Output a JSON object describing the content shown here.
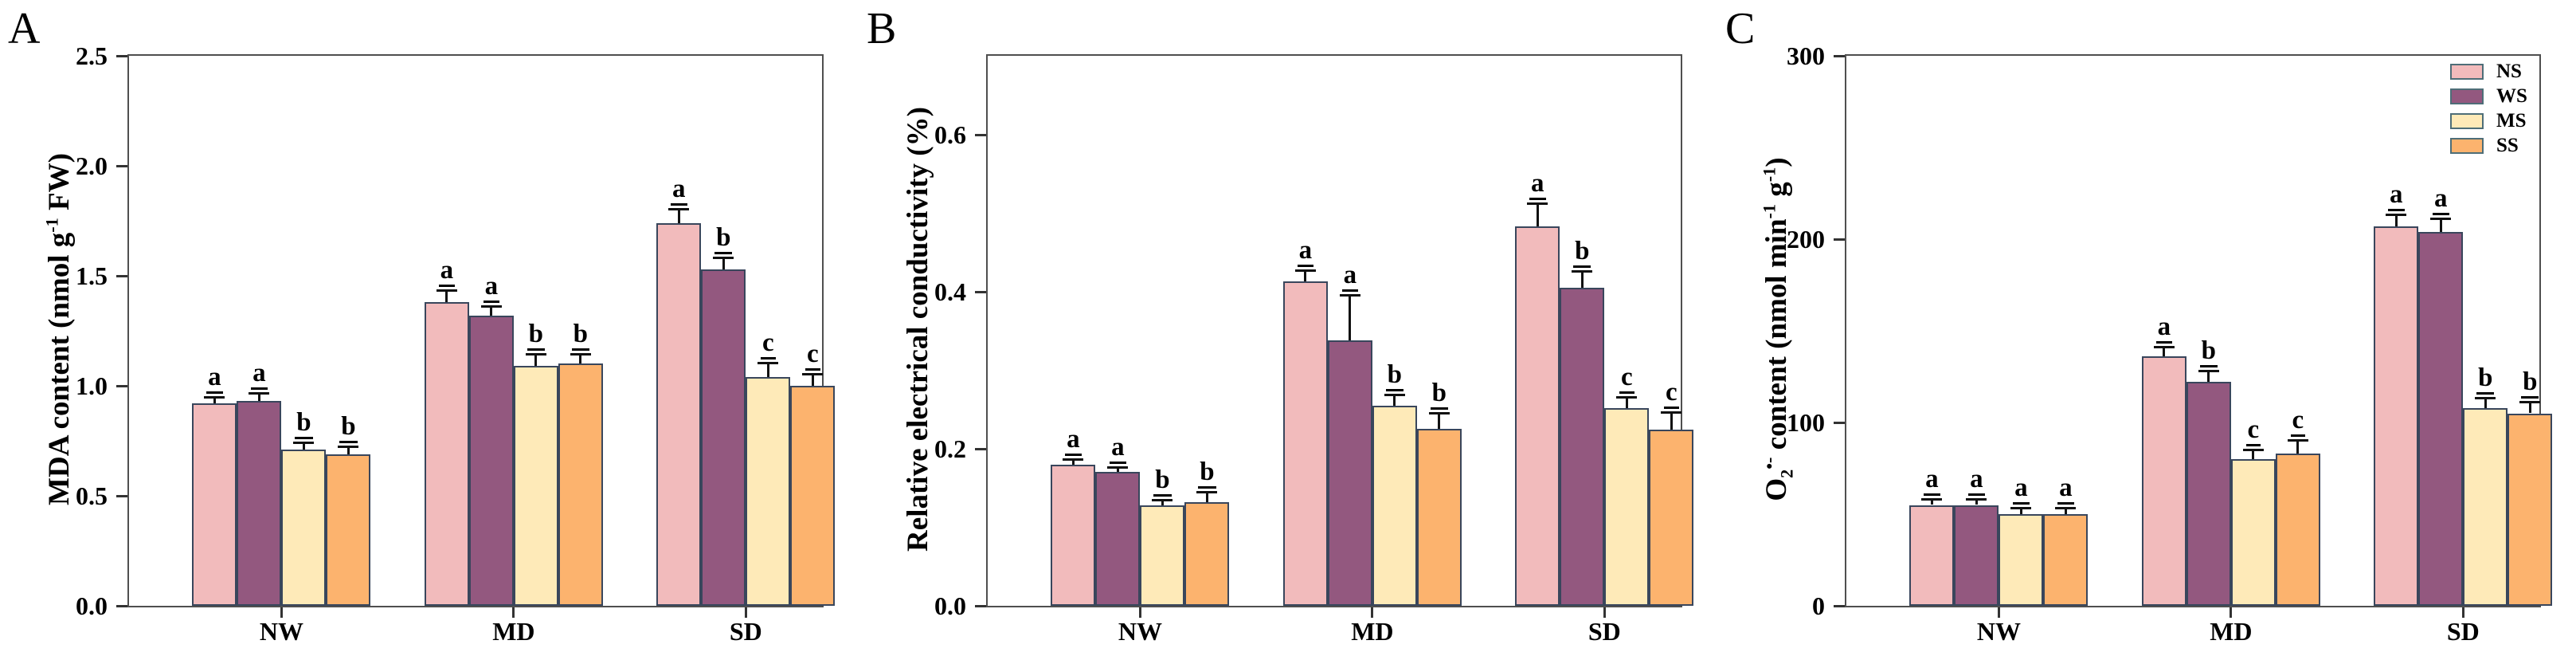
{
  "chart_data": [
    {
      "type": "bar",
      "panel_label": "A",
      "ylabel_text": "MDA content (nmol g-1 FW)",
      "ylabel_segments": [
        {
          "t": "MDA content (nmol g"
        },
        {
          "t": "-1",
          "style": "sup"
        },
        {
          "t": " FW)"
        }
      ],
      "ylim": [
        0,
        2.5
      ],
      "yticks": [
        {
          "label": "0.0",
          "value": 0.0
        },
        {
          "label": "0.5",
          "value": 0.5
        },
        {
          "label": "1.0",
          "value": 1.0
        },
        {
          "label": "1.5",
          "value": 1.5
        },
        {
          "label": "2.0",
          "value": 2.0
        },
        {
          "label": "2.5",
          "value": 2.5
        }
      ],
      "categories": [
        "NW",
        "MD",
        "SD"
      ],
      "series": [
        {
          "name": "NS",
          "color": "#f2bbbc",
          "values": [
            0.92,
            1.38,
            1.74
          ],
          "errors": [
            0.025,
            0.05,
            0.06
          ],
          "letters": [
            "a",
            "a",
            "a"
          ]
        },
        {
          "name": "WS",
          "color": "#93587f",
          "values": [
            0.93,
            1.32,
            1.53
          ],
          "errors": [
            0.035,
            0.04,
            0.05
          ],
          "letters": [
            "a",
            "a",
            "b"
          ]
        },
        {
          "name": "MS",
          "color": "#feeab8",
          "values": [
            0.71,
            1.09,
            1.04
          ],
          "errors": [
            0.03,
            0.05,
            0.06
          ],
          "letters": [
            "b",
            "b",
            "c"
          ]
        },
        {
          "name": "SS",
          "color": "#fcb36e",
          "values": [
            0.69,
            1.1,
            1.0
          ],
          "errors": [
            0.03,
            0.04,
            0.05
          ],
          "letters": [
            "b",
            "b",
            "c"
          ]
        }
      ],
      "legend": null,
      "grid": false
    },
    {
      "type": "bar",
      "panel_label": "B",
      "ylabel_text": "Relative electrical conductivity (%)",
      "ylabel_segments": [
        {
          "t": "Relative electrical conductivity (%)"
        }
      ],
      "ylim": [
        0,
        0.7
      ],
      "yticks": [
        {
          "label": "0.0",
          "value": 0.0
        },
        {
          "label": "0.2",
          "value": 0.2
        },
        {
          "label": "0.4",
          "value": 0.4
        },
        {
          "label": "0.6",
          "value": 0.6
        }
      ],
      "categories": [
        "NW",
        "MD",
        "SD"
      ],
      "series": [
        {
          "name": "NS",
          "color": "#f2bbbc",
          "values": [
            0.18,
            0.413,
            0.483
          ],
          "errors": [
            0.006,
            0.013,
            0.028
          ],
          "letters": [
            "a",
            "a",
            "a"
          ]
        },
        {
          "name": "WS",
          "color": "#93587f",
          "values": [
            0.17,
            0.338,
            0.405
          ],
          "errors": [
            0.006,
            0.057,
            0.02
          ],
          "letters": [
            "a",
            "a",
            "b"
          ]
        },
        {
          "name": "MS",
          "color": "#feeab8",
          "values": [
            0.128,
            0.255,
            0.252
          ],
          "errors": [
            0.006,
            0.013,
            0.013
          ],
          "letters": [
            "b",
            "b",
            "c"
          ]
        },
        {
          "name": "SS",
          "color": "#fcb36e",
          "values": [
            0.132,
            0.225,
            0.224
          ],
          "errors": [
            0.012,
            0.02,
            0.022
          ],
          "letters": [
            "b",
            "b",
            "c"
          ]
        }
      ],
      "legend": null,
      "grid": false
    },
    {
      "type": "bar",
      "panel_label": "C",
      "ylabel_text": "O2·- content (nmol min-1 g-1)",
      "ylabel_segments": [
        {
          "t": "O"
        },
        {
          "t": "2",
          "style": "sub"
        },
        {
          "t": "•-",
          "style": "sup"
        },
        {
          "t": " content (nmol min"
        },
        {
          "t": "-1",
          "style": "sup"
        },
        {
          "t": " g"
        },
        {
          "t": "-1",
          "style": "sup"
        },
        {
          "t": ")"
        }
      ],
      "ylim": [
        0,
        300
      ],
      "yticks": [
        {
          "label": "0",
          "value": 0
        },
        {
          "label": "100",
          "value": 100
        },
        {
          "label": "200",
          "value": 200
        },
        {
          "label": "300",
          "value": 300
        }
      ],
      "categories": [
        "NW",
        "MD",
        "SD"
      ],
      "series": [
        {
          "name": "NS",
          "color": "#f2bbbc",
          "values": [
            55,
            136,
            207
          ],
          "errors": [
            3,
            5,
            6
          ],
          "letters": [
            "a",
            "a",
            "a"
          ]
        },
        {
          "name": "WS",
          "color": "#93587f",
          "values": [
            55,
            122,
            204
          ],
          "errors": [
            3,
            6,
            7
          ],
          "letters": [
            "a",
            "b",
            "a"
          ]
        },
        {
          "name": "MS",
          "color": "#feeab8",
          "values": [
            50,
            80,
            108
          ],
          "errors": [
            3,
            5,
            5
          ],
          "letters": [
            "a",
            "c",
            "b"
          ]
        },
        {
          "name": "SS",
          "color": "#fcb36e",
          "values": [
            50,
            83,
            105
          ],
          "errors": [
            3,
            7,
            6
          ],
          "letters": [
            "a",
            "c",
            "b"
          ]
        }
      ],
      "legend": {
        "position": "top-right",
        "items": [
          "NS",
          "WS",
          "MS",
          "SS"
        ]
      },
      "grid": false
    }
  ],
  "style": {
    "bar_edge_color": "#39465c",
    "axis_color": "#4f4f4f",
    "tick_color": "#333333",
    "error_bar_color": "#111111",
    "text_color": "#000000",
    "background": "#ffffff"
  }
}
